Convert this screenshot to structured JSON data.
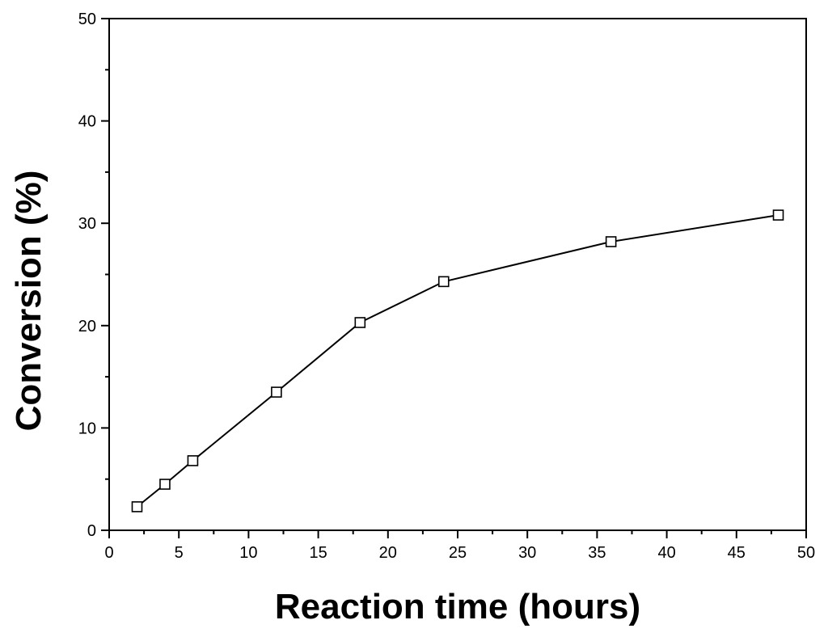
{
  "chart_data": {
    "type": "line",
    "xlabel": "Reaction time (hours)",
    "ylabel": "Conversion (%)",
    "xlim": [
      0,
      50
    ],
    "ylim": [
      0,
      50
    ],
    "x_ticks": [
      0,
      5,
      10,
      15,
      20,
      25,
      30,
      35,
      40,
      45,
      50
    ],
    "y_ticks": [
      0,
      10,
      20,
      30,
      40,
      50
    ],
    "grid": false,
    "series": [
      {
        "marker": "open-square",
        "color": "#000000",
        "x": [
          2,
          4,
          6,
          12,
          18,
          24,
          36,
          48
        ],
        "y": [
          2.3,
          4.5,
          6.8,
          13.5,
          20.3,
          24.3,
          28.2,
          30.8
        ]
      }
    ]
  }
}
